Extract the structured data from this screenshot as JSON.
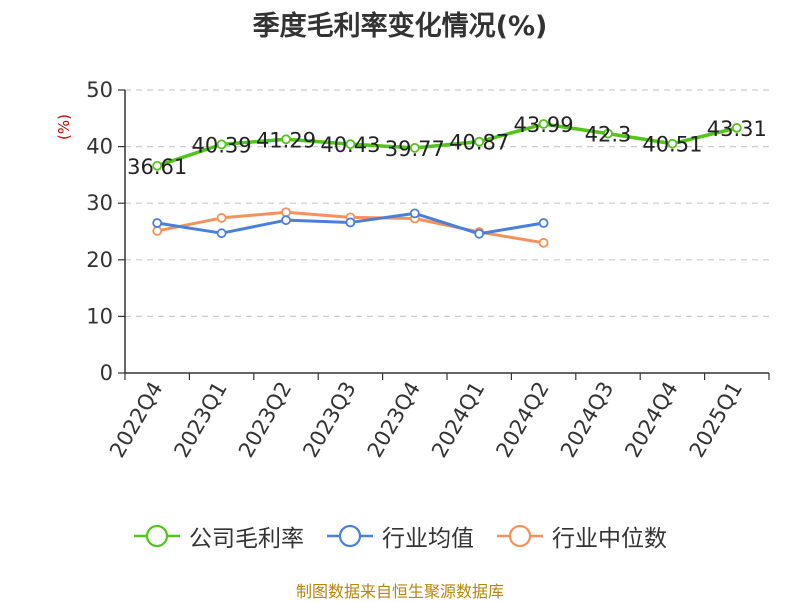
{
  "chart_data": {
    "type": "line",
    "title": "季度毛利率变化情况(%)",
    "ylabel": "(%)",
    "xlabel": "",
    "categories": [
      "2022Q4",
      "2023Q1",
      "2023Q2",
      "2023Q3",
      "2023Q4",
      "2024Q1",
      "2024Q2",
      "2024Q3",
      "2024Q4",
      "2025Q1"
    ],
    "ylim": [
      0,
      50
    ],
    "yticks": [
      0,
      10,
      20,
      30,
      40,
      50
    ],
    "grid": "horizontal dashed",
    "legend_position": "bottom",
    "series": [
      {
        "name": "公司毛利率",
        "color": "#52c41a",
        "values": [
          36.61,
          40.39,
          41.29,
          40.43,
          39.77,
          40.87,
          43.99,
          42.3,
          40.51,
          43.31
        ],
        "labels": [
          "36.61",
          "40.39",
          "41.29",
          "40.43",
          "39.77",
          "40.87",
          "43.99",
          "42.3",
          "40.51",
          "43.31"
        ]
      },
      {
        "name": "行业均值",
        "color": "#4a7fdc",
        "values": [
          26.5,
          24.7,
          27.0,
          26.6,
          28.2,
          24.6,
          26.5,
          null,
          null,
          null
        ]
      },
      {
        "name": "行业中位数",
        "color": "#f5915a",
        "values": [
          25.1,
          27.4,
          28.4,
          27.5,
          27.3,
          24.9,
          23.0,
          null,
          null,
          null
        ]
      }
    ]
  },
  "source_note": "制图数据来自恒生聚源数据库"
}
